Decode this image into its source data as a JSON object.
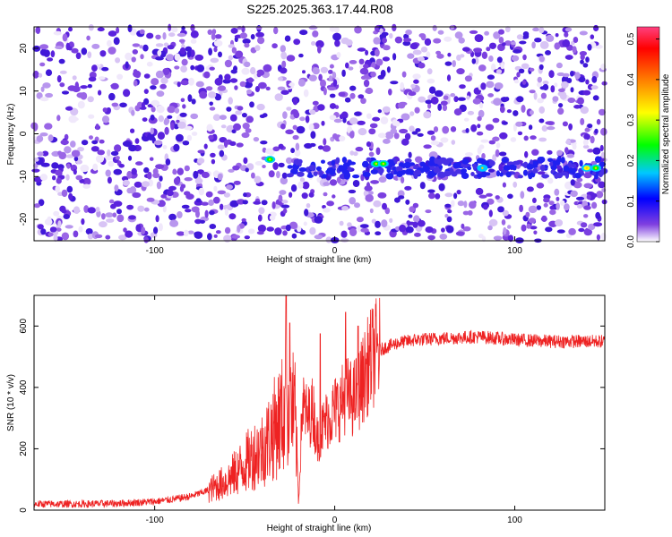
{
  "title": "S225.2025.363.17.44.R08",
  "chart_data": [
    {
      "type": "heatmap",
      "xlabel": "Height of straight line (km)",
      "ylabel": "Frequency (Hz)",
      "xlim": [
        -167,
        150
      ],
      "ylim": [
        -25,
        25
      ],
      "xticks": [
        -100,
        0,
        100
      ],
      "yticks": [
        -20,
        -10,
        0,
        10,
        20
      ],
      "colorbar": {
        "label": "Normalized spectral amplitude",
        "range": [
          0,
          0.53
        ],
        "ticks": [
          0,
          0.1,
          0.2,
          0.3,
          0.4,
          0.5
        ],
        "colormap": [
          "#ffffff",
          "#8040e0",
          "#0000ff",
          "#00c8ff",
          "#00ff00",
          "#ffff00",
          "#ff8000",
          "#ff0000",
          "#ff4080"
        ]
      },
      "features": [
        {
          "description": "Noise background of normalized amplitude ~0.0 to 0.05 across all frequencies"
        },
        {
          "description": "Persistent band at frequency ~ -8 Hz from ~-20 km to 150 km",
          "frequency_hz": -8
        }
      ],
      "peaks": [
        {
          "x": -36,
          "y": -6,
          "value": 0.25
        },
        {
          "x": 23,
          "y": -7,
          "value": 0.3
        },
        {
          "x": 27,
          "y": -7,
          "value": 0.28
        },
        {
          "x": 82,
          "y": -8,
          "value": 0.22
        },
        {
          "x": 140,
          "y": -8,
          "value": 0.35
        },
        {
          "x": 145,
          "y": -8,
          "value": 0.25
        }
      ]
    },
    {
      "type": "line",
      "xlabel": "Height of straight line (km)",
      "ylabel": "SNR (10 * v/v)",
      "xlim": [
        -167,
        150
      ],
      "ylim": [
        0,
        700
      ],
      "xticks": [
        -100,
        0,
        100
      ],
      "yticks": [
        0,
        200,
        400,
        600
      ],
      "color": "#ee2222",
      "series": [
        {
          "name": "SNR",
          "x": [
            -167,
            -140,
            -120,
            -100,
            -90,
            -80,
            -70,
            -60,
            -50,
            -45,
            -40,
            -35,
            -30,
            -25,
            -22,
            -20,
            -18,
            -15,
            -12,
            -10,
            -8,
            -5,
            -2,
            0,
            3,
            6,
            10,
            13,
            16,
            19,
            22,
            25,
            28,
            35,
            45,
            60,
            80,
            100,
            120,
            150
          ],
          "y": [
            20,
            20,
            22,
            28,
            35,
            45,
            65,
            95,
            150,
            180,
            200,
            250,
            300,
            350,
            300,
            30,
            350,
            300,
            330,
            230,
            250,
            290,
            310,
            330,
            340,
            380,
            360,
            390,
            430,
            480,
            510,
            520,
            530,
            545,
            555,
            560,
            565,
            555,
            550,
            550
          ],
          "spikes": [
            {
              "x": -27,
              "y": 700
            },
            {
              "x": -25,
              "y": 610
            },
            {
              "x": -8,
              "y": 575
            },
            {
              "x": 6,
              "y": 645
            },
            {
              "x": 13,
              "y": 600
            }
          ]
        }
      ]
    }
  ]
}
